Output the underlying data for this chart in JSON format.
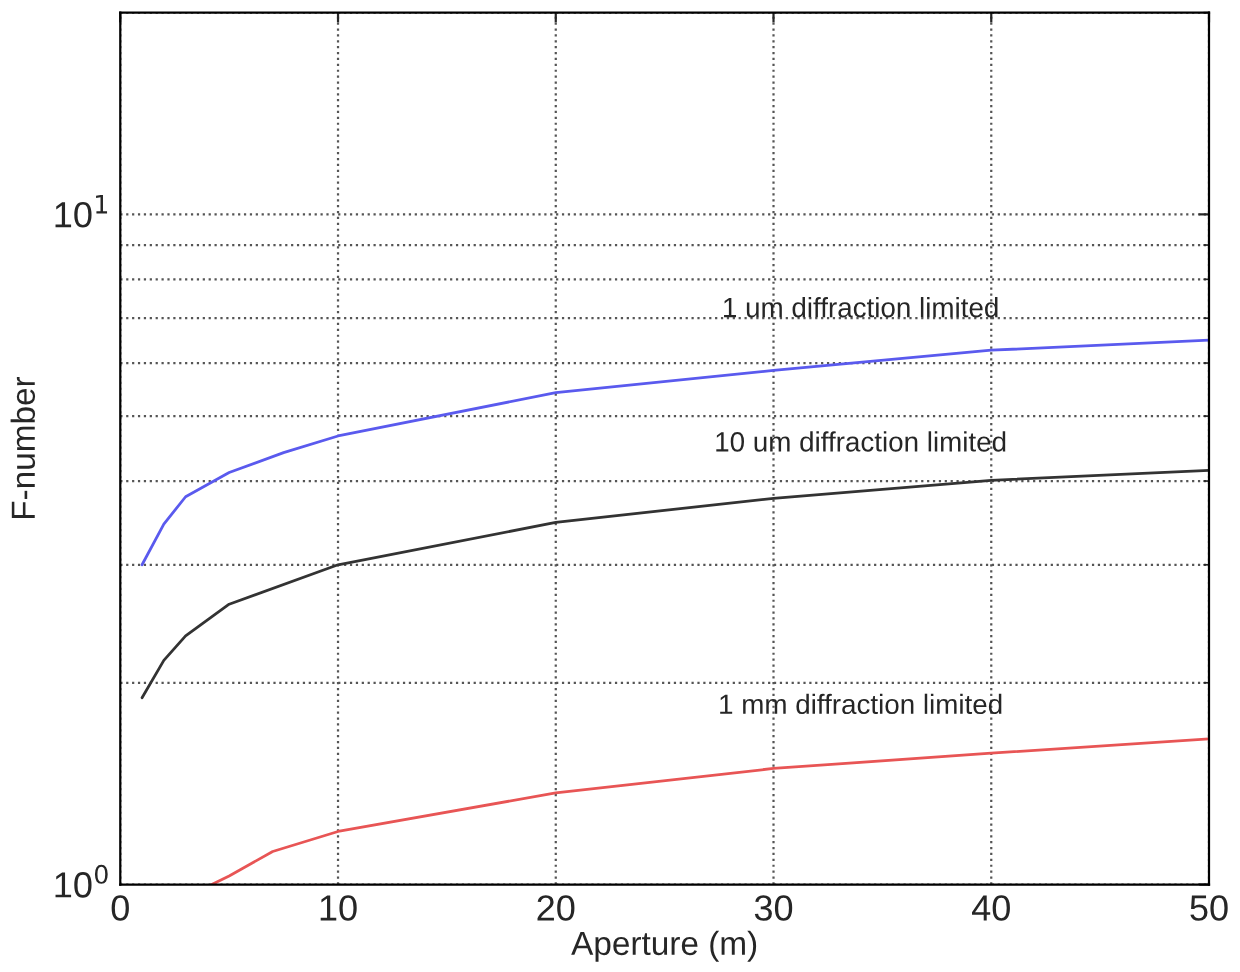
{
  "chart_data": {
    "type": "line",
    "xlabel": "Aperture (m)",
    "ylabel": "F-number",
    "log": "y",
    "grid": true,
    "line_style": "solid",
    "marker": "none",
    "xlim": [
      0,
      50
    ],
    "xticks": [
      0,
      10,
      20,
      30,
      40,
      50
    ],
    "ylim": [
      1,
      20
    ],
    "yticks": [
      {
        "value": 1,
        "label": "10$^{0}$"
      },
      {
        "value": 10,
        "label": "10$^{1}$"
      }
    ],
    "series": [
      {
        "color": "#5a5aee",
        "x": [
          1,
          2,
          3,
          5,
          7.5,
          10,
          20,
          30,
          40,
          50
        ],
        "values": [
          3.0,
          3.45,
          3.79,
          4.12,
          4.41,
          4.67,
          5.42,
          5.85,
          6.27,
          6.49
        ]
      },
      {
        "color": "#333333",
        "x": [
          1,
          2,
          3,
          5,
          10,
          20,
          30,
          40,
          50
        ],
        "values": [
          1.9,
          2.16,
          2.35,
          2.62,
          3.0,
          3.47,
          3.77,
          4.01,
          4.15
        ]
      },
      {
        "color": "#e85555",
        "x": [
          4.2,
          5,
          7,
          10,
          20,
          30,
          40,
          50
        ],
        "values": [
          1.0,
          1.03,
          1.12,
          1.2,
          1.37,
          1.49,
          1.57,
          1.65
        ]
      }
    ],
    "annotations": [
      "1 um diffraction limited",
      "10 um diffraction limited",
      "1 mm diffraction limited"
    ]
  }
}
